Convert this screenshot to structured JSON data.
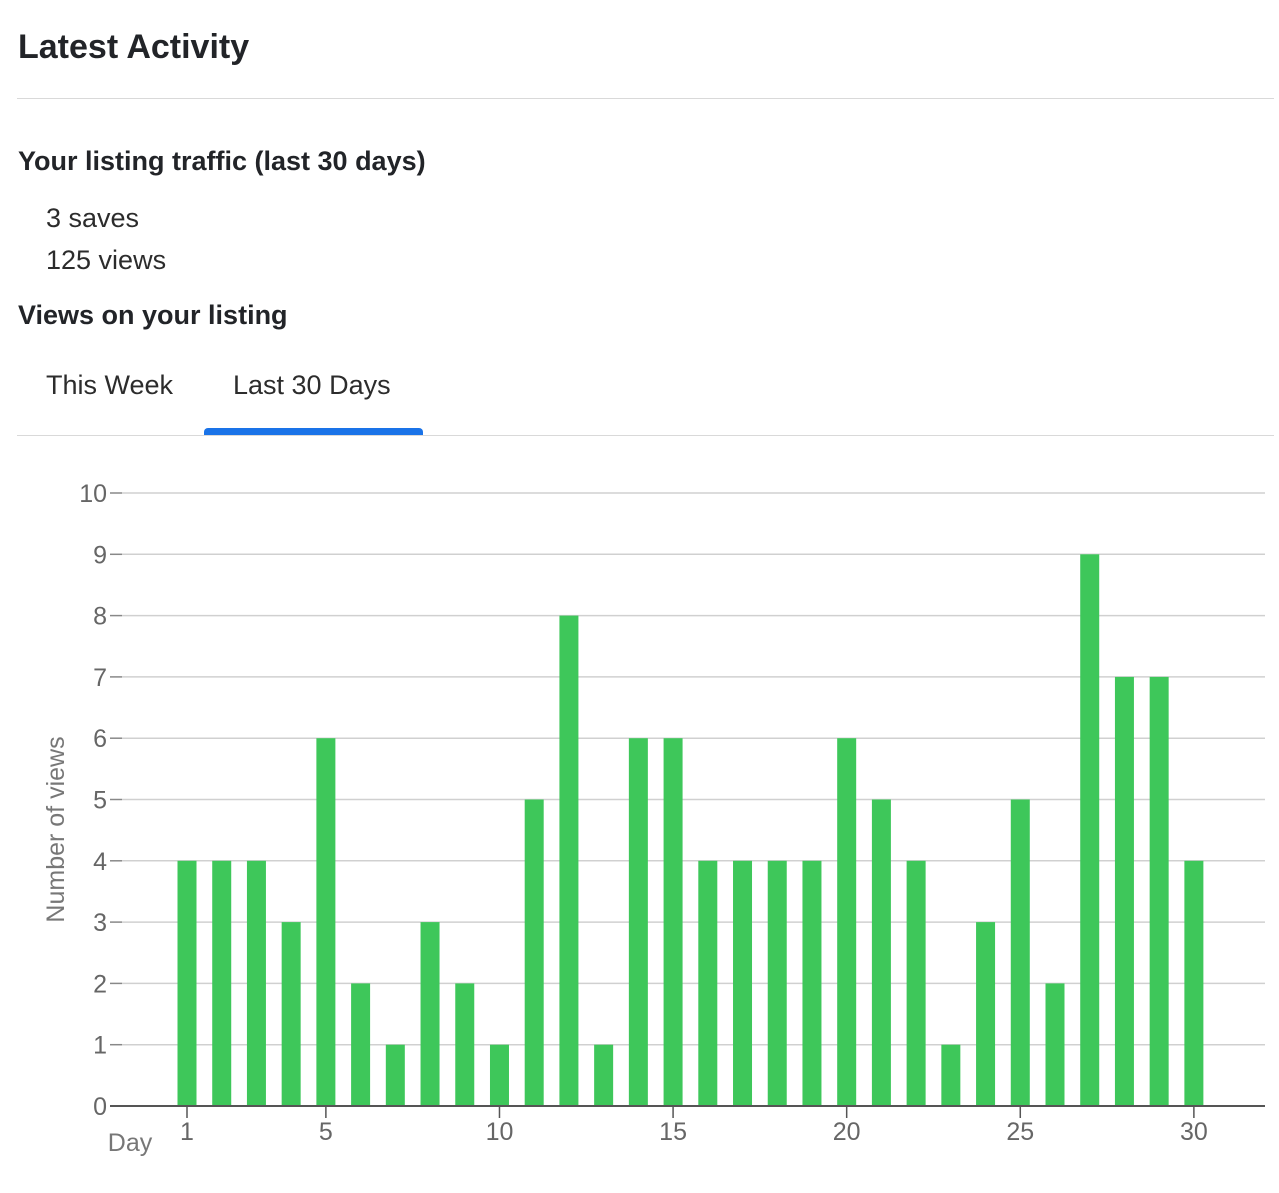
{
  "header": {
    "title": "Latest Activity"
  },
  "traffic": {
    "heading": "Your listing traffic (last 30 days)",
    "saves": "3 saves",
    "views": "125 views"
  },
  "views_section": {
    "heading": "Views on your listing",
    "tabs": [
      {
        "label": "This Week",
        "active": false
      },
      {
        "label": "Last 30 Days",
        "active": true
      }
    ],
    "accent_color": "#1a73e8"
  },
  "chart_data": {
    "type": "bar",
    "x": [
      1,
      2,
      3,
      4,
      5,
      6,
      7,
      8,
      9,
      10,
      11,
      12,
      13,
      14,
      15,
      16,
      17,
      18,
      19,
      20,
      21,
      22,
      23,
      24,
      25,
      26,
      27,
      28,
      29,
      30
    ],
    "values": [
      4,
      4,
      4,
      3,
      6,
      2,
      1,
      3,
      2,
      1,
      5,
      8,
      1,
      6,
      6,
      4,
      4,
      4,
      4,
      6,
      5,
      4,
      1,
      3,
      5,
      2,
      9,
      7,
      7,
      4
    ],
    "xlabel": "Day",
    "ylabel": "Number of views",
    "ylim": [
      0,
      10
    ],
    "yticks": [
      0,
      1,
      2,
      3,
      4,
      5,
      6,
      7,
      8,
      9,
      10
    ],
    "xticks": [
      1,
      5,
      10,
      15,
      20,
      25,
      30
    ],
    "grid": true,
    "bar_color": "#3ec75a"
  }
}
